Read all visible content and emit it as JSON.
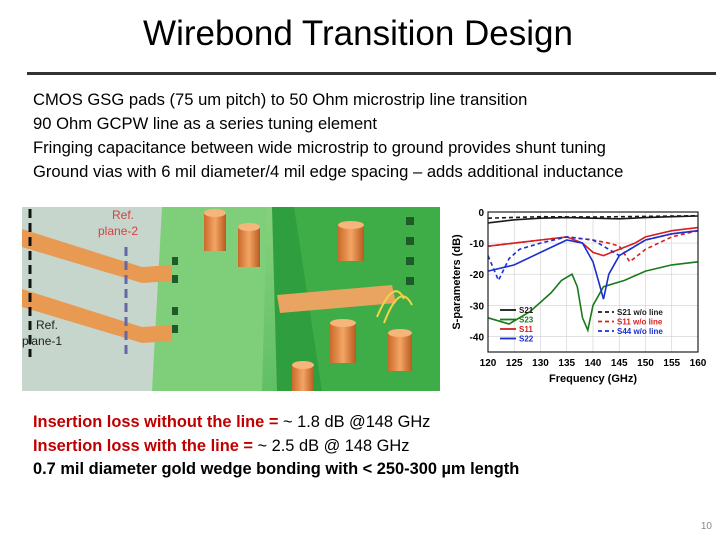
{
  "slide": {
    "title": "Wirebond Transition Design",
    "bullets": [
      "CMOS GSG pads (75 um pitch) to 50 Ohm microstrip line transition",
      "90 Ohm GCPW line as a series tuning element",
      "Fringing capacitance between wide microstrip to ground provides shunt tuning",
      "Ground vias with 6 mil diameter/4 mil edge spacing – adds additional inductance"
    ],
    "figure": {
      "ref_plane_2": [
        "Ref.",
        "plane-2"
      ],
      "ref_plane_1": [
        "Ref.",
        "plane-1"
      ]
    },
    "notes": {
      "line1_label": "Insertion loss without the line = ",
      "line1_value": "~ 1.8 dB @148 GHz",
      "line2_label": "Insertion loss with the line = ",
      "line2_value": "~ 2.5 dB @ 148 GHz",
      "line3": "0.7 mil diameter gold wedge bonding with < 250-300 µm length"
    },
    "page_number": "10"
  },
  "chart_data": {
    "type": "line",
    "xlabel": "Frequency (GHz)",
    "ylabel": "S-parameters (dB)",
    "xlim": [
      120,
      160
    ],
    "ylim": [
      -45,
      0
    ],
    "xticks": [
      "120",
      "125",
      "130",
      "135",
      "140",
      "145",
      "150",
      "155",
      "160"
    ],
    "yticks": [
      "0",
      "-10",
      "-20",
      "-30",
      "-40"
    ],
    "grid": true,
    "legend_position": "bottom-right",
    "series": [
      {
        "name": "S21",
        "color": "#1a1a1a",
        "dash": "solid",
        "x": [
          120,
          125,
          130,
          135,
          140,
          145,
          150,
          155,
          160
        ],
        "y": [
          -3.5,
          -2.5,
          -2,
          -1.8,
          -2,
          -2.2,
          -1.8,
          -1.5,
          -1.3
        ]
      },
      {
        "name": "S23",
        "color": "#1a7a1a",
        "dash": "solid",
        "x": [
          120,
          124,
          128,
          132,
          134,
          136,
          137,
          138,
          139,
          140,
          142,
          146,
          150,
          155,
          160
        ],
        "y": [
          -34,
          -36,
          -32,
          -26,
          -22,
          -20,
          -24,
          -34,
          -38,
          -30,
          -24,
          -22,
          -19,
          -17,
          -16
        ]
      },
      {
        "name": "S11",
        "color": "#d62020",
        "dash": "solid",
        "x": [
          120,
          125,
          130,
          135,
          138,
          140,
          142,
          145,
          148,
          150,
          155,
          160
        ],
        "y": [
          -11,
          -10,
          -9,
          -8,
          -10,
          -13,
          -14,
          -12,
          -10,
          -8,
          -6,
          -5
        ]
      },
      {
        "name": "S22",
        "color": "#1a2fd0",
        "dash": "solid",
        "x": [
          120,
          125,
          130,
          135,
          138,
          140,
          141,
          142,
          143,
          145,
          150,
          155,
          160
        ],
        "y": [
          -19,
          -17,
          -13,
          -9,
          -10,
          -16,
          -22,
          -28,
          -20,
          -14,
          -9,
          -7,
          -6
        ]
      },
      {
        "name": "S21 w/o line",
        "color": "#1a1a1a",
        "dash": "4,3",
        "x": [
          120,
          130,
          140,
          150,
          160
        ],
        "y": [
          -2,
          -1.5,
          -1.6,
          -1.4,
          -1.2
        ]
      },
      {
        "name": "S11 w/o line",
        "color": "#d62020",
        "dash": "4,3",
        "x": [
          120,
          125,
          130,
          135,
          140,
          143,
          145,
          147,
          150,
          155,
          160
        ],
        "y": [
          -11,
          -10,
          -9,
          -8,
          -9,
          -10,
          -11,
          -16,
          -12,
          -8,
          -6
        ]
      },
      {
        "name": "S44 w/o line",
        "color": "#1a2fd0",
        "dash": "4,3",
        "x": [
          120,
          122,
          124,
          126,
          130,
          135,
          140,
          143,
          145,
          148,
          150,
          155,
          160
        ],
        "y": [
          -14,
          -22,
          -15,
          -12,
          -10,
          -8,
          -9,
          -12,
          -14,
          -11,
          -9,
          -7,
          -6
        ]
      }
    ]
  }
}
